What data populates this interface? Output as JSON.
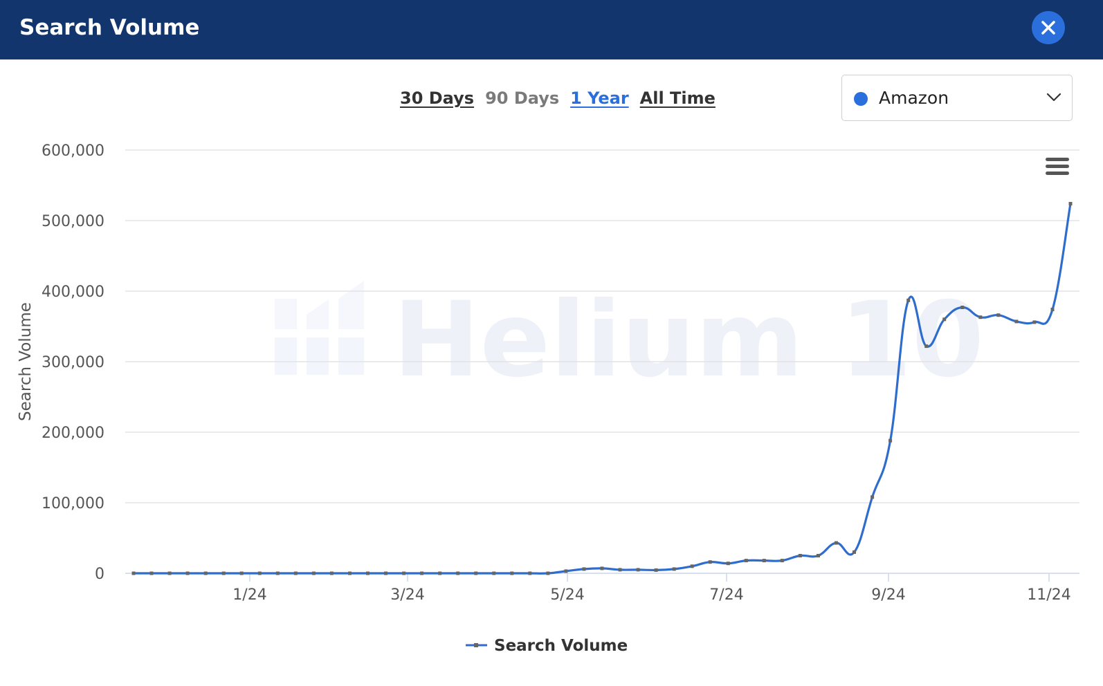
{
  "header": {
    "title": "Search Volume"
  },
  "range_tabs": [
    {
      "label": "30 Days",
      "state": "underlined"
    },
    {
      "label": "90 Days",
      "state": "muted"
    },
    {
      "label": "1 Year",
      "state": "active"
    },
    {
      "label": "All Time",
      "state": "underlined"
    }
  ],
  "marketplace": {
    "selected": "Amazon",
    "dot_color": "#2a6fdb"
  },
  "icons": {
    "close": "close-icon",
    "menu": "hamburger-menu-icon",
    "dropdown": "chevron-down-icon"
  },
  "colors": {
    "header_bg": "#13356d",
    "accent": "#2a6fdb",
    "series_line": "#2f6dcd",
    "marker": "#666666"
  },
  "watermark": "Helium 10",
  "chart_data": {
    "type": "line",
    "title": "",
    "xlabel": "",
    "ylabel": "Search Volume",
    "ylim": [
      0,
      600000
    ],
    "yticks": [
      0,
      100000,
      200000,
      300000,
      400000,
      500000,
      600000
    ],
    "ytick_labels": [
      "0",
      "100,000",
      "200,000",
      "300,000",
      "400,000",
      "500,000",
      "600,000"
    ],
    "xticks": [
      "1/24",
      "3/24",
      "5/24",
      "7/24",
      "9/24",
      "11/24"
    ],
    "grid": true,
    "legend": "bottom-center",
    "series": [
      {
        "name": "Search Volume",
        "values": [
          0,
          0,
          0,
          0,
          0,
          0,
          0,
          0,
          0,
          0,
          0,
          0,
          0,
          0,
          0,
          0,
          0,
          0,
          0,
          0,
          0,
          0,
          0,
          0,
          3000,
          6000,
          7000,
          5000,
          5000,
          4500,
          6000,
          10000,
          16000,
          14000,
          18000,
          18000,
          18000,
          25000,
          25000,
          43000,
          30000,
          108000,
          188000,
          387000,
          322000,
          360000,
          377000,
          363000,
          366000,
          357000,
          356000,
          374000,
          524000
        ]
      }
    ]
  },
  "legend_label": "Search Volume"
}
